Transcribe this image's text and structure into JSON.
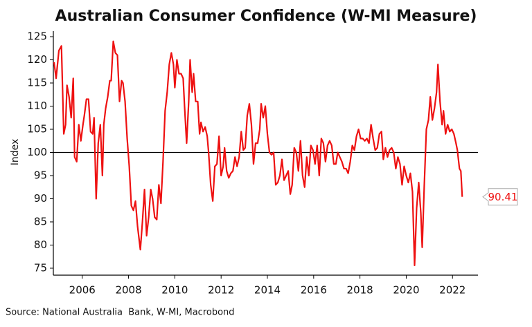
{
  "chart_data": {
    "type": "line",
    "title": "Australian Consumer Confidence (W-MI Measure)",
    "y_label": "Index",
    "source": "Source: National Australia  Bank, W-MI, Macrobond",
    "color": "#ee1111",
    "reference_line": 100,
    "xlim": [
      2004.75,
      2023.1
    ],
    "ylim": [
      73.5,
      126.2
    ],
    "xticks": [
      2006,
      2008,
      2010,
      2012,
      2014,
      2016,
      2018,
      2020,
      2022
    ],
    "yticks": [
      75,
      80,
      85,
      90,
      95,
      100,
      105,
      110,
      115,
      120,
      125
    ],
    "x": [
      2004.78,
      2004.87,
      2004.99,
      2005.1,
      2005.2,
      2005.28,
      2005.34,
      2005.43,
      2005.52,
      2005.61,
      2005.67,
      2005.76,
      2005.85,
      2005.94,
      2006.03,
      2006.09,
      2006.18,
      2006.27,
      2006.36,
      2006.45,
      2006.51,
      2006.6,
      2006.69,
      2006.78,
      2006.87,
      2006.93,
      2007.01,
      2007.1,
      2007.19,
      2007.25,
      2007.34,
      2007.43,
      2007.52,
      2007.61,
      2007.7,
      2007.76,
      2007.85,
      2007.94,
      2008.03,
      2008.12,
      2008.21,
      2008.3,
      2008.39,
      2008.51,
      2008.6,
      2008.69,
      2008.78,
      2008.87,
      2008.96,
      2009.04,
      2009.13,
      2009.22,
      2009.31,
      2009.4,
      2009.49,
      2009.58,
      2009.67,
      2009.76,
      2009.85,
      2009.94,
      2010.0,
      2010.09,
      2010.18,
      2010.27,
      2010.36,
      2010.42,
      2010.51,
      2010.6,
      2010.66,
      2010.75,
      2010.81,
      2010.9,
      2010.99,
      2011.07,
      2011.13,
      2011.22,
      2011.31,
      2011.4,
      2011.46,
      2011.55,
      2011.64,
      2011.73,
      2011.82,
      2011.91,
      2012.0,
      2012.09,
      2012.15,
      2012.24,
      2012.33,
      2012.42,
      2012.51,
      2012.6,
      2012.69,
      2012.78,
      2012.87,
      2012.96,
      2013.04,
      2013.13,
      2013.22,
      2013.31,
      2013.4,
      2013.49,
      2013.58,
      2013.67,
      2013.73,
      2013.82,
      2013.91,
      2014.0,
      2014.09,
      2014.18,
      2014.27,
      2014.36,
      2014.45,
      2014.54,
      2014.63,
      2014.72,
      2014.81,
      2014.9,
      2014.99,
      2015.07,
      2015.16,
      2015.25,
      2015.34,
      2015.43,
      2015.52,
      2015.61,
      2015.7,
      2015.79,
      2015.88,
      2015.97,
      2016.06,
      2016.15,
      2016.24,
      2016.33,
      2016.42,
      2016.51,
      2016.6,
      2016.69,
      2016.78,
      2016.87,
      2016.96,
      2017.04,
      2017.13,
      2017.22,
      2017.31,
      2017.4,
      2017.49,
      2017.58,
      2017.67,
      2017.76,
      2017.85,
      2017.94,
      2018.03,
      2018.12,
      2018.21,
      2018.3,
      2018.39,
      2018.48,
      2018.57,
      2018.66,
      2018.75,
      2018.84,
      2018.93,
      2019.01,
      2019.1,
      2019.19,
      2019.28,
      2019.37,
      2019.46,
      2019.55,
      2019.64,
      2019.73,
      2019.82,
      2019.91,
      2020.0,
      2020.09,
      2020.18,
      2020.27,
      2020.36,
      2020.45,
      2020.54,
      2020.63,
      2020.69,
      2020.78,
      2020.87,
      2020.96,
      2021.04,
      2021.13,
      2021.22,
      2021.31,
      2021.37,
      2021.46,
      2021.55,
      2021.61,
      2021.7,
      2021.79,
      2021.88,
      2021.97,
      2022.06,
      2022.15,
      2022.21,
      2022.3,
      2022.36,
      2022.42
    ],
    "values": [
      119.5,
      116,
      122,
      123,
      104,
      106,
      114.5,
      112,
      107.5,
      116,
      99,
      98,
      106,
      102.5,
      106,
      108,
      111.5,
      111.5,
      104.5,
      104,
      107.5,
      90,
      102,
      106,
      95,
      106,
      109.5,
      112,
      115.5,
      115.5,
      124,
      121.5,
      121,
      111,
      115.5,
      115,
      111,
      103,
      97,
      88.5,
      87.5,
      89.5,
      84,
      79,
      85,
      92,
      82,
      86,
      92,
      90,
      86,
      85.5,
      93,
      89,
      98,
      109,
      113,
      119,
      121.5,
      119,
      114,
      120,
      117,
      117,
      116,
      110,
      102,
      111,
      120,
      113,
      117,
      111,
      111,
      104,
      106.5,
      104.5,
      105.5,
      103.5,
      100,
      93,
      89.5,
      97,
      97.5,
      103.5,
      95,
      97,
      101,
      96,
      94.5,
      95.5,
      96,
      99,
      97,
      99,
      104.5,
      100.5,
      101,
      108,
      110.5,
      106,
      97.5,
      102,
      102,
      105,
      110.5,
      107.5,
      110,
      104,
      100,
      99.5,
      100,
      93,
      93.5,
      95,
      98.5,
      94,
      95,
      96,
      91,
      93,
      101,
      100,
      96,
      102.5,
      95,
      92.5,
      99,
      95,
      101.5,
      100.5,
      97.5,
      101.5,
      95,
      103,
      102,
      98,
      101.5,
      102.5,
      101.5,
      97.5,
      97.5,
      100,
      99,
      98,
      96.5,
      96.5,
      95.5,
      98,
      101.5,
      100.5,
      103.5,
      105,
      103,
      103,
      102.5,
      103,
      102,
      106,
      103,
      100.5,
      101,
      104,
      104.5,
      98.5,
      101,
      99,
      100.5,
      101,
      100,
      96.5,
      99,
      97.5,
      93,
      97,
      95,
      93.5,
      95.5,
      91.5,
      75.6,
      88,
      93.5,
      87,
      79.5,
      93,
      105,
      107,
      112,
      107,
      109.5,
      113,
      119,
      111,
      106,
      109,
      104,
      106,
      104.5,
      105,
      104,
      102,
      100.5,
      96.5,
      96,
      90.41
    ]
  }
}
